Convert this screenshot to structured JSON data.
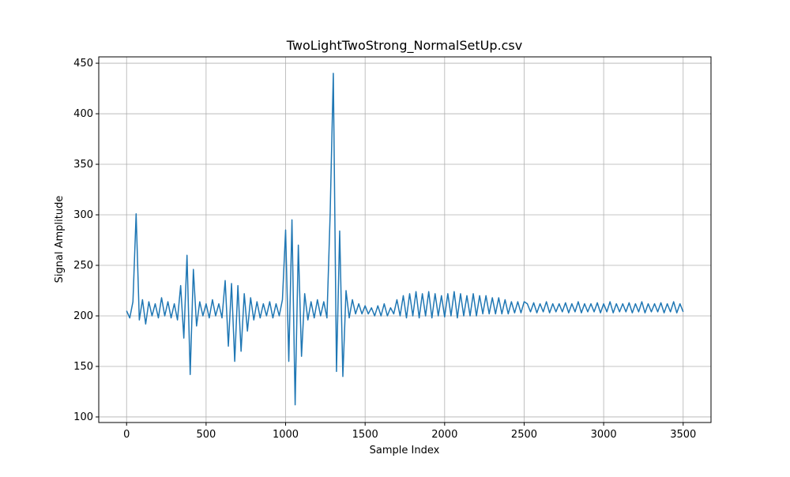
{
  "chart_data": {
    "type": "line",
    "title": "TwoLightTwoStrong_NormalSetUp.csv",
    "xlabel": "Sample Index",
    "ylabel": "Signal Amplitude",
    "color": "#1f77b4",
    "grid": true,
    "xlim": [
      -175,
      3675
    ],
    "ylim": [
      94.5,
      456.3
    ],
    "xticks": [
      0,
      500,
      1000,
      1500,
      2000,
      2500,
      3000,
      3500
    ],
    "yticks": [
      100,
      150,
      200,
      250,
      300,
      350,
      400,
      450
    ],
    "x": [
      0,
      20,
      40,
      60,
      80,
      100,
      120,
      140,
      160,
      180,
      200,
      220,
      240,
      260,
      280,
      300,
      320,
      340,
      360,
      380,
      400,
      420,
      440,
      460,
      480,
      500,
      520,
      540,
      560,
      580,
      600,
      620,
      640,
      660,
      680,
      700,
      720,
      740,
      760,
      780,
      800,
      820,
      840,
      860,
      880,
      900,
      920,
      940,
      960,
      980,
      1000,
      1020,
      1040,
      1060,
      1080,
      1100,
      1120,
      1140,
      1160,
      1180,
      1200,
      1220,
      1240,
      1260,
      1280,
      1300,
      1320,
      1340,
      1360,
      1380,
      1400,
      1420,
      1440,
      1460,
      1480,
      1500,
      1520,
      1540,
      1560,
      1580,
      1600,
      1620,
      1640,
      1660,
      1680,
      1700,
      1720,
      1740,
      1760,
      1780,
      1800,
      1820,
      1840,
      1860,
      1880,
      1900,
      1920,
      1940,
      1960,
      1980,
      2000,
      2020,
      2040,
      2060,
      2080,
      2100,
      2120,
      2140,
      2160,
      2180,
      2200,
      2220,
      2240,
      2260,
      2280,
      2300,
      2320,
      2340,
      2360,
      2380,
      2400,
      2420,
      2440,
      2460,
      2480,
      2500,
      2520,
      2540,
      2560,
      2580,
      2600,
      2620,
      2640,
      2660,
      2680,
      2700,
      2720,
      2740,
      2760,
      2780,
      2800,
      2820,
      2840,
      2860,
      2880,
      2900,
      2920,
      2940,
      2960,
      2980,
      3000,
      3020,
      3040,
      3060,
      3080,
      3100,
      3120,
      3140,
      3160,
      3180,
      3200,
      3220,
      3240,
      3260,
      3280,
      3300,
      3320,
      3340,
      3360,
      3380,
      3400,
      3420,
      3440,
      3460,
      3480,
      3500
    ],
    "values": [
      205,
      198,
      214,
      301,
      196,
      216,
      192,
      214,
      200,
      212,
      198,
      218,
      200,
      214,
      198,
      212,
      196,
      230,
      178,
      260,
      142,
      246,
      190,
      214,
      200,
      212,
      198,
      216,
      200,
      212,
      198,
      235,
      170,
      232,
      155,
      230,
      165,
      222,
      185,
      218,
      196,
      214,
      198,
      212,
      200,
      214,
      198,
      212,
      200,
      216,
      285,
      155,
      295,
      112,
      270,
      160,
      222,
      196,
      214,
      198,
      216,
      200,
      214,
      198,
      300,
      440,
      145,
      284,
      140,
      225,
      198,
      216,
      202,
      212,
      202,
      210,
      202,
      208,
      200,
      210,
      200,
      212,
      200,
      208,
      202,
      216,
      200,
      220,
      198,
      222,
      200,
      224,
      198,
      222,
      200,
      224,
      198,
      222,
      200,
      220,
      199,
      222,
      200,
      224,
      198,
      222,
      200,
      220,
      200,
      222,
      200,
      220,
      202,
      220,
      202,
      218,
      202,
      218,
      202,
      216,
      202,
      214,
      203,
      214,
      203,
      214,
      212,
      204,
      213,
      203,
      212,
      204,
      214,
      203,
      212,
      204,
      212,
      204,
      213,
      203,
      212,
      204,
      214,
      203,
      212,
      204,
      212,
      204,
      213,
      203,
      212,
      204,
      214,
      203,
      212,
      204,
      212,
      204,
      213,
      203,
      212,
      204,
      214,
      203,
      212,
      204,
      212,
      204,
      213,
      203,
      212,
      204,
      214,
      203,
      212,
      204
    ]
  }
}
